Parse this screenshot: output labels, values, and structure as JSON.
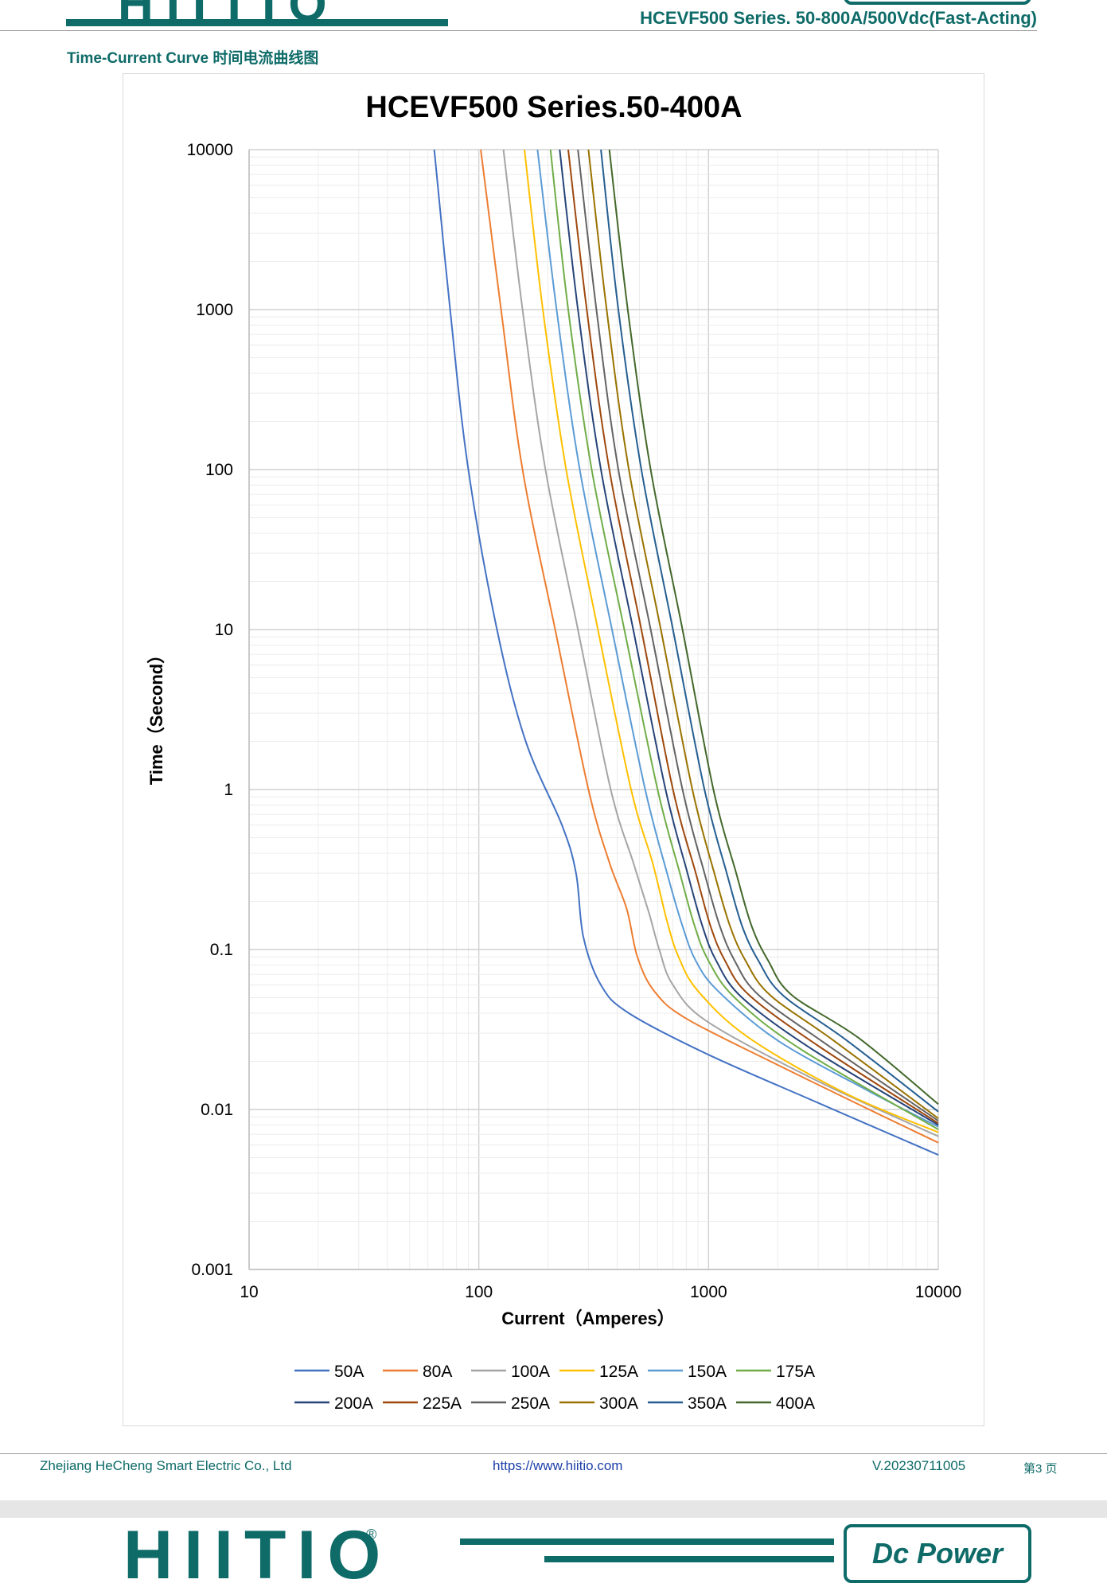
{
  "header": {
    "brand_partial": "HIITIO",
    "series_title": "HCEVF500 Series. 50-800A/500Vdc(Fast-Acting)"
  },
  "section": {
    "title": "Time-Current Curve  时间电流曲线图"
  },
  "chart_data": {
    "type": "line",
    "title": "HCEVF500 Series.50-400A",
    "xlabel": "Current（Amperes）",
    "ylabel": "Time（Second）",
    "xscale": "log",
    "yscale": "log",
    "xlim": [
      10,
      10000
    ],
    "ylim": [
      0.001,
      10000
    ],
    "x_ticks": [
      "10",
      "100",
      "1000",
      "10000"
    ],
    "y_ticks": [
      "10000",
      "1000",
      "100",
      "10",
      "1",
      "0.1",
      "0.01",
      "0.001"
    ],
    "grid": true,
    "legend_position": "bottom",
    "series": [
      {
        "name": "50A",
        "color": "#4472c4",
        "points": [
          [
            64,
            10000
          ],
          [
            75,
            1000
          ],
          [
            90,
            100
          ],
          [
            120,
            10
          ],
          [
            160,
            2
          ],
          [
            230,
            0.6
          ],
          [
            265,
            0.3
          ],
          [
            285,
            0.12
          ],
          [
            340,
            0.06
          ],
          [
            450,
            0.04
          ],
          [
            1000,
            0.022
          ],
          [
            3000,
            0.011
          ],
          [
            10000,
            0.0052
          ]
        ]
      },
      {
        "name": "80A",
        "color": "#ed7d31",
        "points": [
          [
            102,
            10000
          ],
          [
            125,
            1000
          ],
          [
            155,
            100
          ],
          [
            215,
            10
          ],
          [
            300,
            1
          ],
          [
            370,
            0.35
          ],
          [
            440,
            0.18
          ],
          [
            490,
            0.09
          ],
          [
            580,
            0.055
          ],
          [
            800,
            0.037
          ],
          [
            2000,
            0.019
          ],
          [
            5000,
            0.01
          ],
          [
            10000,
            0.0062
          ]
        ]
      },
      {
        "name": "100A",
        "color": "#a5a5a5",
        "points": [
          [
            128,
            10000
          ],
          [
            155,
            1000
          ],
          [
            195,
            100
          ],
          [
            270,
            10
          ],
          [
            375,
            1
          ],
          [
            470,
            0.35
          ],
          [
            550,
            0.17
          ],
          [
            610,
            0.1
          ],
          [
            700,
            0.06
          ],
          [
            1000,
            0.035
          ],
          [
            3000,
            0.015
          ],
          [
            10000,
            0.0068
          ]
        ]
      },
      {
        "name": "125A",
        "color": "#ffc000",
        "points": [
          [
            158,
            10000
          ],
          [
            190,
            1000
          ],
          [
            240,
            100
          ],
          [
            330,
            10
          ],
          [
            460,
            1
          ],
          [
            570,
            0.35
          ],
          [
            660,
            0.15
          ],
          [
            740,
            0.09
          ],
          [
            900,
            0.055
          ],
          [
            1500,
            0.028
          ],
          [
            4000,
            0.0125
          ],
          [
            10000,
            0.0072
          ]
        ]
      },
      {
        "name": "150A",
        "color": "#5b9bd5",
        "points": [
          [
            180,
            10000
          ],
          [
            218,
            1000
          ],
          [
            275,
            100
          ],
          [
            380,
            10
          ],
          [
            530,
            1
          ],
          [
            660,
            0.3
          ],
          [
            770,
            0.14
          ],
          [
            880,
            0.085
          ],
          [
            1100,
            0.055
          ],
          [
            2000,
            0.027
          ],
          [
            5000,
            0.013
          ],
          [
            10000,
            0.0078
          ]
        ]
      },
      {
        "name": "175A",
        "color": "#70ad47",
        "points": [
          [
            205,
            10000
          ],
          [
            245,
            1000
          ],
          [
            310,
            100
          ],
          [
            430,
            10
          ],
          [
            600,
            1
          ],
          [
            750,
            0.3
          ],
          [
            870,
            0.14
          ],
          [
            1000,
            0.085
          ],
          [
            1300,
            0.05
          ],
          [
            2500,
            0.024
          ],
          [
            10000,
            0.0075
          ]
        ]
      },
      {
        "name": "200A",
        "color": "#264478",
        "points": [
          [
            225,
            10000
          ],
          [
            270,
            1000
          ],
          [
            340,
            100
          ],
          [
            470,
            10
          ],
          [
            650,
            1
          ],
          [
            810,
            0.3
          ],
          [
            940,
            0.14
          ],
          [
            1080,
            0.085
          ],
          [
            1400,
            0.05
          ],
          [
            2800,
            0.024
          ],
          [
            10000,
            0.008
          ]
        ]
      },
      {
        "name": "225A",
        "color": "#9e480e",
        "points": [
          [
            245,
            10000
          ],
          [
            295,
            1000
          ],
          [
            370,
            100
          ],
          [
            510,
            10
          ],
          [
            700,
            1
          ],
          [
            880,
            0.3
          ],
          [
            1020,
            0.14
          ],
          [
            1180,
            0.085
          ],
          [
            1500,
            0.052
          ],
          [
            3000,
            0.025
          ],
          [
            10000,
            0.0082
          ]
        ]
      },
      {
        "name": "250A",
        "color": "#636363",
        "points": [
          [
            270,
            10000
          ],
          [
            325,
            1000
          ],
          [
            405,
            100
          ],
          [
            560,
            10
          ],
          [
            770,
            1
          ],
          [
            960,
            0.3
          ],
          [
            1120,
            0.14
          ],
          [
            1300,
            0.085
          ],
          [
            1650,
            0.052
          ],
          [
            3200,
            0.026
          ],
          [
            10000,
            0.0085
          ]
        ]
      },
      {
        "name": "300A",
        "color": "#997300",
        "points": [
          [
            300,
            10000
          ],
          [
            360,
            1000
          ],
          [
            450,
            100
          ],
          [
            620,
            10
          ],
          [
            850,
            1
          ],
          [
            1060,
            0.3
          ],
          [
            1240,
            0.14
          ],
          [
            1450,
            0.085
          ],
          [
            1850,
            0.052
          ],
          [
            3500,
            0.027
          ],
          [
            10000,
            0.0088
          ]
        ]
      },
      {
        "name": "350A",
        "color": "#255e91",
        "points": [
          [
            340,
            10000
          ],
          [
            405,
            1000
          ],
          [
            510,
            100
          ],
          [
            700,
            10
          ],
          [
            960,
            1
          ],
          [
            1200,
            0.3
          ],
          [
            1400,
            0.14
          ],
          [
            1650,
            0.085
          ],
          [
            2100,
            0.052
          ],
          [
            4000,
            0.027
          ],
          [
            10000,
            0.0097
          ]
        ]
      },
      {
        "name": "400A",
        "color": "#43682b",
        "points": [
          [
            370,
            10000
          ],
          [
            445,
            1000
          ],
          [
            560,
            100
          ],
          [
            770,
            10
          ],
          [
            1050,
            1
          ],
          [
            1320,
            0.3
          ],
          [
            1540,
            0.14
          ],
          [
            1820,
            0.085
          ],
          [
            2300,
            0.052
          ],
          [
            4500,
            0.028
          ],
          [
            10000,
            0.0108
          ]
        ]
      }
    ]
  },
  "footer": {
    "company": "Zhejiang HeCheng Smart Electric Co., Ltd",
    "url": "https://www.hiitio.com",
    "version": "V.20230711005",
    "page": "第3 页"
  },
  "next_page_header": {
    "brand": "HIITIO",
    "registered_mark": "®",
    "badge": "Dc Power"
  }
}
